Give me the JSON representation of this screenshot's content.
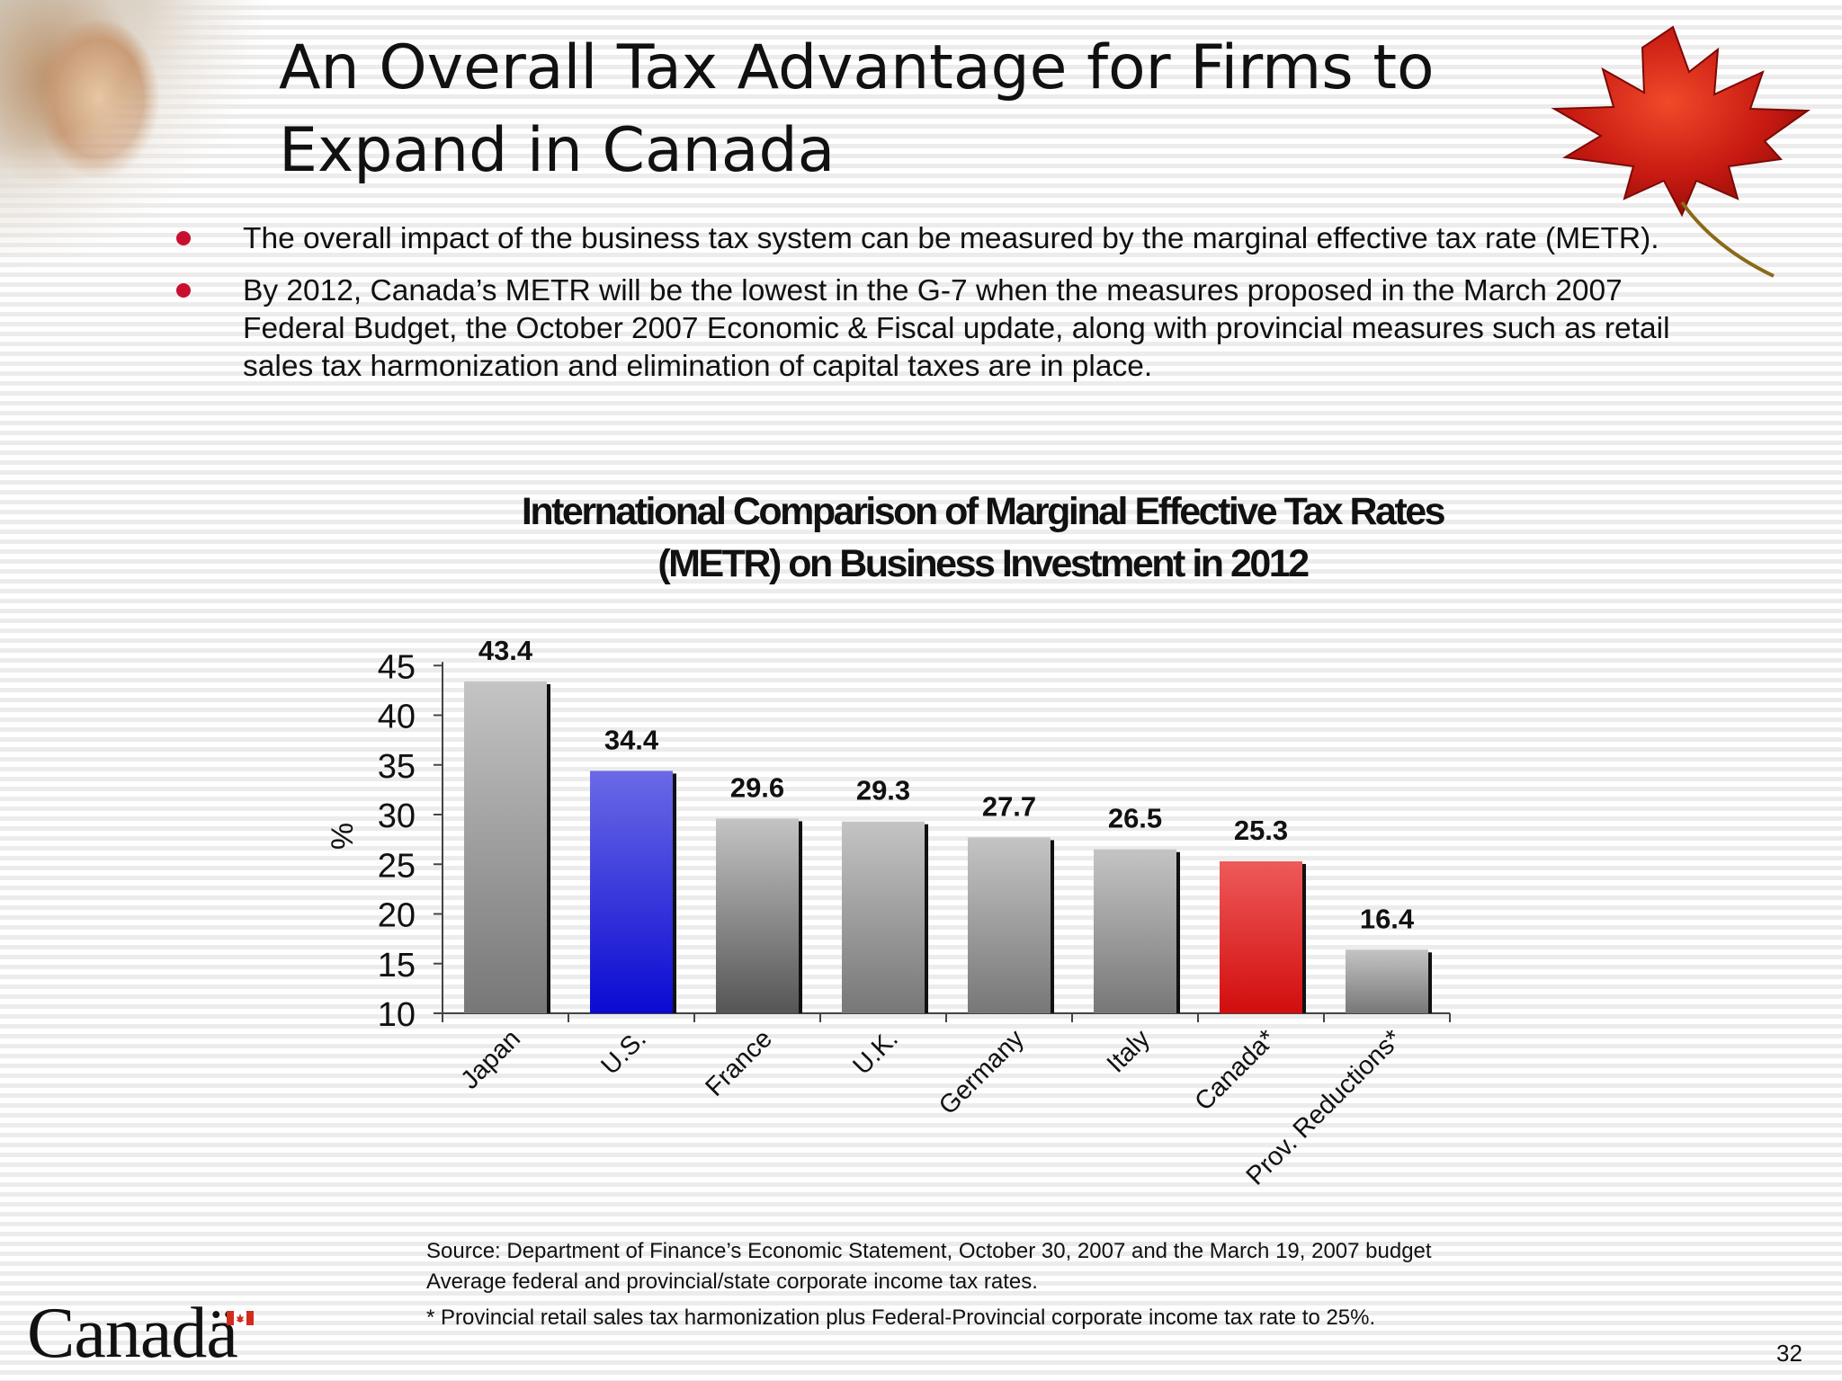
{
  "slide": {
    "title_line1": "An Overall Tax Advantage for Firms to",
    "title_line2": "Expand in Canada",
    "bullets": [
      "The overall impact of the business tax system can be measured by the marginal effective tax rate (METR).",
      "By 2012, Canada’s METR will be the lowest in the G-7 when the measures proposed in the March 2007 Federal Budget, the October 2007 Economic & Fiscal update, along with provincial measures such as retail sales tax harmonization and elimination of capital taxes are in place."
    ],
    "source": "Source: Department of Finance’s Economic Statement, October 30, 2007 and the March 19, 2007 budget",
    "note": "Average federal and provincial/state corporate income  tax rates.",
    "footnote": "* Provincial retail sales tax harmonization plus Federal-Provincial corporate income tax rate to 25%.",
    "wordmark": "Canadä",
    "page_number": "32"
  },
  "chart_data": {
    "type": "bar",
    "title_line1": "International Comparison of Marginal Effective Tax Rates",
    "title_line2": "(METR) on Business Investment in 2012",
    "ylabel": "%",
    "xlabel": "",
    "categories": [
      "Japan",
      "U.S.",
      "France",
      "U.K.",
      "Germany",
      "Italy",
      "Canada*",
      "Prov. Reductions*"
    ],
    "values": [
      43.4,
      34.4,
      29.6,
      29.3,
      27.7,
      26.5,
      25.3,
      16.4
    ],
    "data_labels": [
      "43.4",
      "34.4",
      "29.6",
      "29.3",
      "27.7",
      "26.5",
      "25.3",
      "16.4"
    ],
    "ylim": [
      10,
      45
    ],
    "yticks": [
      10,
      15,
      20,
      25,
      30,
      35,
      40,
      45
    ],
    "grid": false,
    "legend": "none",
    "bar_styles": [
      "gray",
      "blue",
      "gray-dark",
      "gray",
      "gray",
      "gray",
      "red",
      "gray"
    ],
    "colors": {
      "blue": "#1010d0",
      "red": "#d41111",
      "gray": "#8a8a8a"
    }
  }
}
